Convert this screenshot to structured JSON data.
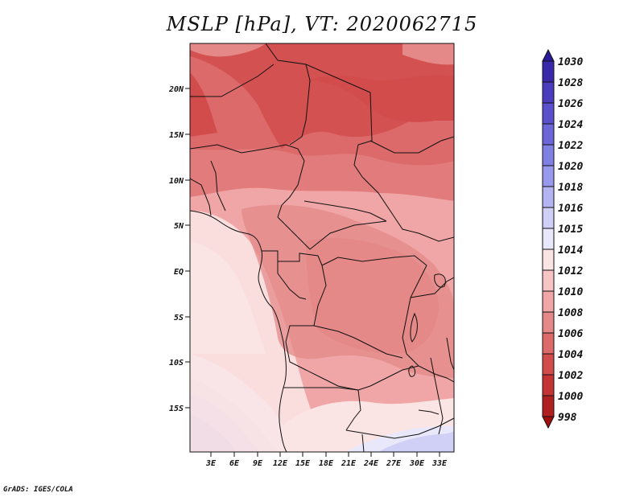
{
  "title": "MSLP [hPa], VT: 2020062715",
  "credit": "GrADS: IGES/COLA",
  "lat_labels": [
    "20N",
    "15N",
    "10N",
    "5N",
    "EQ",
    "5S",
    "10S",
    "15S"
  ],
  "lon_labels": [
    "3E",
    "6E",
    "9E",
    "12E",
    "15E",
    "18E",
    "21E",
    "24E",
    "27E",
    "30E",
    "33E"
  ],
  "colorbar": {
    "levels": [
      "1030",
      "1028",
      "1026",
      "1024",
      "1022",
      "1020",
      "1018",
      "1016",
      "1015",
      "1014",
      "1012",
      "1010",
      "1008",
      "1006",
      "1004",
      "1002",
      "1000",
      "998"
    ],
    "colors": [
      "#2a1a9a",
      "#3a28aa",
      "#4a3cbc",
      "#5a50cc",
      "#6c66d8",
      "#8080e4",
      "#9898ec",
      "#b4b4f2",
      "#d0d0f6",
      "#e8e8fa",
      "#fbe4e4",
      "#f6c4c4",
      "#f0a6a6",
      "#e48888",
      "#dc6a6a",
      "#d24c4c",
      "#c43434",
      "#b02020",
      "#a01010"
    ]
  }
}
